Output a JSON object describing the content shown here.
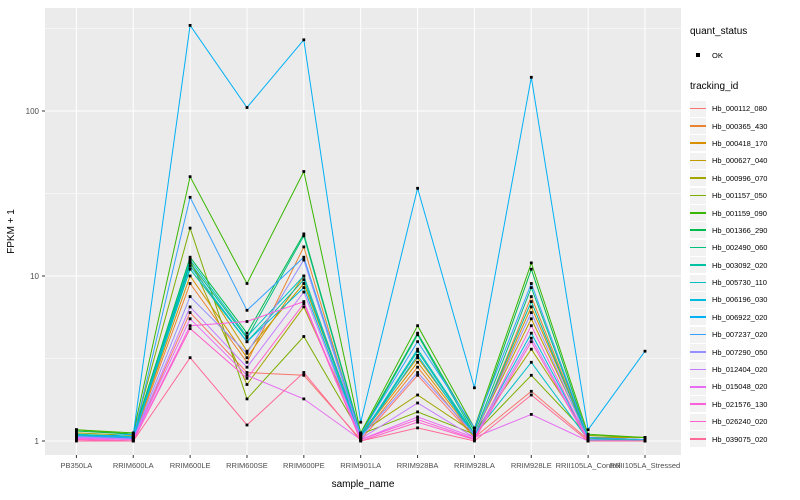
{
  "figure": {
    "panel_background": "#EBEBEB",
    "gridline_color": "#FFFFFF",
    "tick_label_color": "#4D4D4D",
    "axis_title_color": "#000000",
    "point_color": "#000000"
  },
  "legend": {
    "quant_status_title": "quant_status",
    "quant_ok_label": "OK",
    "tracking_id_title": "tracking_id"
  },
  "chart_data": {
    "type": "line",
    "title": "",
    "xlabel": "sample_name",
    "ylabel": "FPKM + 1",
    "y_scale": "log10",
    "y_ticks": [
      1,
      10,
      100
    ],
    "y_tick_labels": [
      "1",
      "10",
      "100"
    ],
    "y_minor_ticks": [
      3.1623,
      31.623,
      316.23
    ],
    "ylim": [
      1,
      350
    ],
    "grid": true,
    "legend_position": "right",
    "point_shape": "filled-square",
    "categories": [
      "PB350LA",
      "RRIM600LA",
      "RRIM600LE",
      "RRIM600SE",
      "RRIM600PE",
      "RRIM901LA",
      "RRIM928BA",
      "RRIM928LA",
      "RRIM928LE",
      "RRII105LA_Control",
      "RRII105LA_Stressed"
    ],
    "series": [
      {
        "name": "Hb_000112_080",
        "color": "#F8766D",
        "values": [
          1.05,
          1.02,
          6.0,
          2.6,
          2.5,
          1.02,
          2.5,
          1.05,
          2.0,
          1.02,
          1.0
        ]
      },
      {
        "name": "Hb_000365_430",
        "color": "#EA8331",
        "values": [
          1.08,
          1.03,
          9.0,
          3.0,
          15.0,
          1.05,
          2.8,
          1.05,
          7.5,
          1.03,
          1.0
        ]
      },
      {
        "name": "Hb_000418_170",
        "color": "#D89000",
        "values": [
          1.06,
          1.05,
          10.0,
          3.2,
          10.0,
          1.08,
          3.0,
          1.08,
          6.5,
          1.05,
          1.02
        ]
      },
      {
        "name": "Hb_000627_040",
        "color": "#C09B00",
        "values": [
          1.1,
          1.05,
          12.0,
          3.5,
          9.0,
          1.1,
          3.2,
          1.1,
          5.5,
          1.05,
          1.05
        ]
      },
      {
        "name": "Hb_000996_070",
        "color": "#A3A500",
        "values": [
          1.12,
          1.08,
          12.5,
          2.2,
          6.5,
          1.12,
          1.9,
          1.12,
          3.6,
          1.08,
          1.05
        ]
      },
      {
        "name": "Hb_001157_050",
        "color": "#7CAE00",
        "values": [
          1.17,
          1.1,
          19.5,
          1.8,
          4.3,
          1.1,
          1.5,
          1.1,
          2.5,
          1.08,
          1.05
        ]
      },
      {
        "name": "Hb_001159_090",
        "color": "#39B600",
        "values": [
          1.17,
          1.12,
          40.0,
          9.0,
          43.0,
          1.12,
          5.0,
          1.2,
          12.0,
          1.1,
          1.05
        ]
      },
      {
        "name": "Hb_001366_290",
        "color": "#00BB4E",
        "values": [
          1.15,
          1.1,
          13.0,
          4.5,
          18.0,
          1.1,
          4.5,
          1.15,
          11.0,
          1.05,
          1.02
        ]
      },
      {
        "name": "Hb_002490_060",
        "color": "#00BF7D",
        "values": [
          1.1,
          1.05,
          12.0,
          4.2,
          17.5,
          1.08,
          4.4,
          1.1,
          8.5,
          1.03,
          1.02
        ]
      },
      {
        "name": "Hb_003092_020",
        "color": "#00C1A3",
        "values": [
          1.08,
          1.05,
          11.0,
          4.0,
          9.5,
          1.05,
          3.5,
          1.08,
          7.0,
          1.02,
          1.0
        ]
      },
      {
        "name": "Hb_005730_110",
        "color": "#00BFC4",
        "values": [
          1.1,
          1.06,
          12.5,
          4.3,
          10.0,
          1.06,
          3.6,
          1.1,
          3.0,
          1.02,
          1.0
        ]
      },
      {
        "name": "Hb_006196_030",
        "color": "#00BAE0",
        "values": [
          1.08,
          1.04,
          11.5,
          4.0,
          8.5,
          1.05,
          3.3,
          1.07,
          4.5,
          1.02,
          1.0
        ]
      },
      {
        "name": "Hb_006922_020",
        "color": "#00B0F6",
        "values": [
          1.05,
          1.1,
          330.0,
          105.0,
          270.0,
          1.3,
          34.0,
          2.1,
          160.0,
          1.17,
          3.5
        ]
      },
      {
        "name": "Hb_007237_020",
        "color": "#35A2FF",
        "values": [
          1.07,
          1.05,
          30.0,
          6.2,
          13.0,
          1.1,
          4.0,
          1.2,
          9.0,
          1.05,
          1.02
        ]
      },
      {
        "name": "Hb_007290_050",
        "color": "#9590FF",
        "values": [
          1.06,
          1.03,
          7.5,
          3.4,
          12.5,
          1.05,
          2.6,
          1.1,
          6.0,
          1.02,
          1.0
        ]
      },
      {
        "name": "Hb_012404_020",
        "color": "#C77CFF",
        "values": [
          1.05,
          1.02,
          6.5,
          2.8,
          8.0,
          1.03,
          1.7,
          1.05,
          4.2,
          1.0,
          1.0
        ]
      },
      {
        "name": "Hb_015048_020",
        "color": "#E76BF3",
        "values": [
          1.04,
          1.02,
          5.5,
          2.5,
          1.8,
          1.02,
          1.4,
          1.05,
          1.45,
          1.0,
          1.0
        ]
      },
      {
        "name": "Hb_021576_130",
        "color": "#FA62DB",
        "values": [
          1.03,
          1.0,
          5.0,
          5.3,
          7.0,
          1.02,
          1.35,
          1.03,
          5.0,
          1.0,
          1.0
        ]
      },
      {
        "name": "Hb_026240_020",
        "color": "#FF61CC",
        "values": [
          1.02,
          1.0,
          4.8,
          2.4,
          6.8,
          1.0,
          1.3,
          1.02,
          4.0,
          1.0,
          1.0
        ]
      },
      {
        "name": "Hb_039075_020",
        "color": "#FF6A98",
        "values": [
          1.0,
          1.0,
          3.2,
          1.25,
          2.6,
          1.0,
          1.2,
          1.0,
          1.9,
          1.0,
          1.0
        ]
      }
    ]
  }
}
